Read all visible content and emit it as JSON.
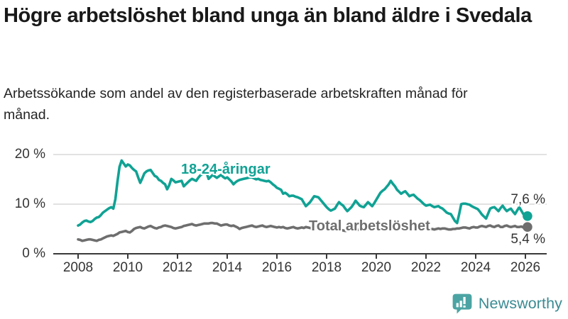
{
  "title": "Högre arbetslöshet bland unga än bland äldre i Svedala",
  "subtitle": "Arbetssökande som andel av den registerbaserade arbetskraften månad för månad.",
  "branding": {
    "logo_text": "Newsworthy",
    "icon": "newsworthy-bubble-barchart-icon",
    "icon_color": "#4ba4a3",
    "text_color": "#3a8b93"
  },
  "colors": {
    "title": "#191919",
    "subtitle": "#242424",
    "axis_text": "#343434",
    "axis_line": "#3a3a3a",
    "gridline": "#d8d8d8",
    "background": "#ffffff"
  },
  "chart_data": {
    "type": "line",
    "title": "Högre arbetslöshet bland unga än bland äldre i Svedala",
    "subtitle": "Arbetssökande som andel av den registerbaserade arbetskraften månad för månad.",
    "x_unit": "month",
    "x_start": "2008-01",
    "x_end": "2026-02",
    "x_tick_labels": [
      "2008",
      "2010",
      "2012",
      "2014",
      "2016",
      "2018",
      "2020",
      "2022",
      "2024",
      "2026"
    ],
    "y_tick_labels": [
      "0 %",
      "10 %",
      "20 %"
    ],
    "y_gridlines": [
      10,
      20
    ],
    "ylim": [
      0,
      21.5
    ],
    "grid": "horizontal",
    "legend_position": "inline-labels",
    "series": [
      {
        "name": "18-24-åringar",
        "color": "#10a294",
        "end_label": "7,6 %",
        "end_value": 7.6,
        "values": [
          5.7,
          5.9,
          6.3,
          6.6,
          6.7,
          6.5,
          6.4,
          6.6,
          7.0,
          7.3,
          7.4,
          7.8,
          8.3,
          8.6,
          8.9,
          9.2,
          9.4,
          9.1,
          11.0,
          14.5,
          17.5,
          18.8,
          18.2,
          17.6,
          18.0,
          17.8,
          17.3,
          16.9,
          16.6,
          15.4,
          14.3,
          15.2,
          16.2,
          16.6,
          16.8,
          16.9,
          16.3,
          15.7,
          15.5,
          14.9,
          14.7,
          14.3,
          14.0,
          13.0,
          13.8,
          15.1,
          14.8,
          14.4,
          14.5,
          14.6,
          14.7,
          13.6,
          14.0,
          14.4,
          14.8,
          15.1,
          14.9,
          14.7,
          15.3,
          15.8,
          16.1,
          16.3,
          16.4,
          15.1,
          15.5,
          15.9,
          15.6,
          15.3,
          15.6,
          15.9,
          15.5,
          15.2,
          15.4,
          15.0,
          14.6,
          14.0,
          14.4,
          14.7,
          14.9,
          15.0,
          15.1,
          15.2,
          15.3,
          15.4,
          15.4,
          15.2,
          15.0,
          15.1,
          14.9,
          14.8,
          14.7,
          14.6,
          14.7,
          14.4,
          14.0,
          13.7,
          13.3,
          13.1,
          12.9,
          12.1,
          12.3,
          12.0,
          11.6,
          11.7,
          11.7,
          11.5,
          11.4,
          11.2,
          11.0,
          10.3,
          9.6,
          10.0,
          10.4,
          11.0,
          11.6,
          11.5,
          11.4,
          10.9,
          10.4,
          9.9,
          9.4,
          9.0,
          8.7,
          8.9,
          9.1,
          9.8,
          10.4,
          10.0,
          9.7,
          9.1,
          8.6,
          9.0,
          9.4,
          10.0,
          10.7,
          10.2,
          9.7,
          9.5,
          9.4,
          9.9,
          10.4,
          10.0,
          9.6,
          10.2,
          10.9,
          11.6,
          12.3,
          12.7,
          13.0,
          13.5,
          14.0,
          14.7,
          14.1,
          13.6,
          12.9,
          12.5,
          12.1,
          12.4,
          12.6,
          12.1,
          11.6,
          11.8,
          11.9,
          11.5,
          11.1,
          10.8,
          10.4,
          10.0,
          9.7,
          9.8,
          9.9,
          9.6,
          9.4,
          9.5,
          9.6,
          9.3,
          9.1,
          8.7,
          8.3,
          8.1,
          8.0,
          7.3,
          6.6,
          6.2,
          8.0,
          10.0,
          10.1,
          10.1,
          10.0,
          9.9,
          9.6,
          9.4,
          9.2,
          9.0,
          8.5,
          7.9,
          7.5,
          7.1,
          8.1,
          9.1,
          9.3,
          9.4,
          9.0,
          8.6,
          9.2,
          9.7,
          9.1,
          8.6,
          8.9,
          9.1,
          8.5,
          8.0,
          8.7,
          9.4,
          8.7,
          8.0,
          7.8,
          7.6
        ]
      },
      {
        "name": "Total arbetslöshet",
        "color": "#6e6e6e",
        "end_label": "5,4 %",
        "end_value": 5.4,
        "values": [
          2.9,
          2.8,
          2.6,
          2.7,
          2.8,
          2.9,
          2.9,
          2.8,
          2.7,
          2.6,
          2.8,
          2.9,
          3.1,
          3.3,
          3.5,
          3.6,
          3.7,
          3.6,
          3.8,
          4.0,
          4.3,
          4.4,
          4.5,
          4.6,
          4.4,
          4.3,
          4.6,
          5.0,
          5.2,
          5.3,
          5.4,
          5.2,
          5.1,
          5.3,
          5.5,
          5.6,
          5.4,
          5.2,
          5.1,
          5.3,
          5.4,
          5.6,
          5.7,
          5.6,
          5.5,
          5.4,
          5.2,
          5.1,
          5.2,
          5.3,
          5.4,
          5.6,
          5.7,
          5.8,
          5.9,
          6.0,
          5.8,
          5.7,
          5.8,
          5.9,
          6.0,
          6.1,
          6.1,
          6.1,
          6.2,
          6.2,
          6.1,
          6.1,
          5.9,
          5.7,
          5.8,
          5.9,
          5.9,
          5.7,
          5.6,
          5.7,
          5.5,
          5.3,
          5.0,
          5.2,
          5.3,
          5.4,
          5.5,
          5.6,
          5.7,
          5.5,
          5.4,
          5.5,
          5.6,
          5.7,
          5.5,
          5.4,
          5.5,
          5.6,
          5.5,
          5.4,
          5.3,
          5.4,
          5.3,
          5.4,
          5.2,
          5.1,
          5.2,
          5.3,
          5.4,
          5.2,
          5.1,
          5.2,
          5.3,
          5.2,
          5.4,
          5.3,
          5.2,
          5.1,
          5.1,
          5.2,
          5.1,
          5.0,
          5.0,
          4.9,
          4.9,
          4.8,
          4.9,
          4.8,
          4.7,
          4.8,
          4.9,
          4.8,
          4.7,
          4.6,
          4.7,
          4.8,
          4.8,
          4.9,
          4.9,
          4.8,
          4.9,
          5.0,
          5.1,
          5.0,
          4.9,
          5.0,
          5.1,
          5.2,
          5.3,
          5.4,
          5.6,
          5.7,
          5.8,
          5.7,
          5.6,
          5.6,
          5.5,
          5.4,
          5.3,
          5.3,
          5.2,
          5.2,
          5.1,
          5.1,
          5.0,
          5.0,
          5.1,
          5.0,
          4.9,
          4.9,
          5.0,
          5.0,
          5.0,
          5.1,
          5.0,
          5.0,
          4.9,
          5.0,
          5.1,
          5.0,
          5.1,
          5.1,
          5.0,
          4.9,
          4.9,
          5.0,
          5.0,
          5.1,
          5.1,
          5.2,
          5.3,
          5.3,
          5.2,
          5.1,
          5.3,
          5.4,
          5.3,
          5.3,
          5.5,
          5.6,
          5.5,
          5.4,
          5.6,
          5.7,
          5.5,
          5.4,
          5.6,
          5.7,
          5.4,
          5.4,
          5.6,
          5.7,
          5.5,
          5.4,
          5.5,
          5.6,
          5.4,
          5.4,
          5.5,
          5.3,
          5.3,
          5.4
        ]
      }
    ]
  }
}
